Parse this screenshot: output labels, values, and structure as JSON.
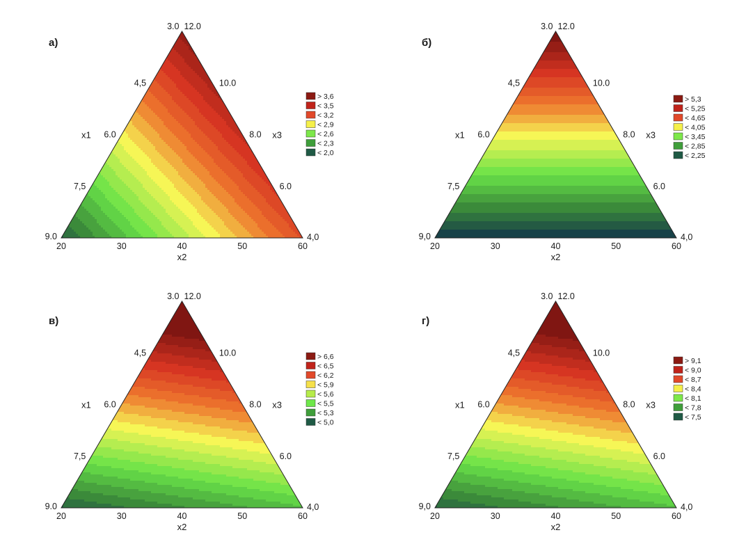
{
  "chart_data": [
    {
      "type": "heatmap",
      "panel_label": "а)",
      "left_ticks": [
        "3.0",
        "4,5",
        "6.0",
        "7,5",
        "9.0"
      ],
      "right_ticks": [
        "12.0",
        "10.0",
        "8.0",
        "6.0",
        "4,0"
      ],
      "bottom_ticks": [
        "20",
        "30",
        "40",
        "50",
        "60"
      ],
      "left_axis": "x1",
      "right_axis": "x3",
      "bottom_axis": "x2",
      "legend": [
        "> 3,6",
        "< 3,5",
        "< 3,2",
        "< 2,9",
        "< 2,6",
        "< 2,3",
        "< 2,0"
      ],
      "legend_colors": [
        "#8b1a12",
        "#c0231a",
        "#e2492a",
        "#f5f04a",
        "#7de84a",
        "#3f9e3a",
        "#1f5a45"
      ],
      "pattern": "diagonal"
    },
    {
      "type": "heatmap",
      "panel_label": "б)",
      "left_ticks": [
        "3.0",
        "4,5",
        "6.0",
        "7,5",
        "9,0"
      ],
      "right_ticks": [
        "12.0",
        "10.0",
        "8.0",
        "6.0",
        "4,0"
      ],
      "bottom_ticks": [
        "20",
        "30",
        "40",
        "50",
        "60"
      ],
      "left_axis": "x1",
      "right_axis": "x3",
      "bottom_axis": "x2",
      "legend": [
        "> 5,3",
        "< 5,25",
        "< 4,65",
        "< 4,05",
        "< 3,45",
        "< 2,85",
        "< 2,25"
      ],
      "legend_colors": [
        "#8b1a12",
        "#c0231a",
        "#e2492a",
        "#f5f04a",
        "#7de84a",
        "#3f9e3a",
        "#1f5a45"
      ],
      "pattern": "horizontal"
    },
    {
      "type": "heatmap",
      "panel_label": "в)",
      "left_ticks": [
        "3.0",
        "4,5",
        "6.0",
        "7,5",
        "9.0"
      ],
      "right_ticks": [
        "12.0",
        "10.0",
        "8.0",
        "6.0",
        "4,0"
      ],
      "bottom_ticks": [
        "20",
        "30",
        "40",
        "50",
        "60"
      ],
      "left_axis": "x1",
      "right_axis": "x3",
      "bottom_axis": "x2",
      "legend": [
        "> 6,6",
        "< 6,5",
        "< 6,2",
        "< 5,9",
        "< 5,6",
        "< 5,5",
        "< 5,3",
        "< 5,0"
      ],
      "legend_colors": [
        "#8b1a12",
        "#c0231a",
        "#e2492a",
        "#f5e04a",
        "#b6ec4a",
        "#6fe84a",
        "#3f9e3a",
        "#1f5a45"
      ],
      "pattern": "tilted"
    },
    {
      "type": "heatmap",
      "panel_label": "г)",
      "left_ticks": [
        "3.0",
        "4,5",
        "6.0",
        "7,5",
        "9,0"
      ],
      "right_ticks": [
        "12.0",
        "10.0",
        "8.0",
        "6.0",
        "4,0"
      ],
      "bottom_ticks": [
        "20",
        "30",
        "40",
        "50",
        "60"
      ],
      "left_axis": "x1",
      "right_axis": "x3",
      "bottom_axis": "x2",
      "legend": [
        "> 9,1",
        "< 9,0",
        "< 8,7",
        "< 8,4",
        "< 8,1",
        "< 7,8",
        "< 7,5"
      ],
      "legend_colors": [
        "#8b1a12",
        "#c0231a",
        "#e2492a",
        "#f5f04a",
        "#7de84a",
        "#3f9e3a",
        "#1f5a45"
      ],
      "pattern": "tilted"
    }
  ]
}
